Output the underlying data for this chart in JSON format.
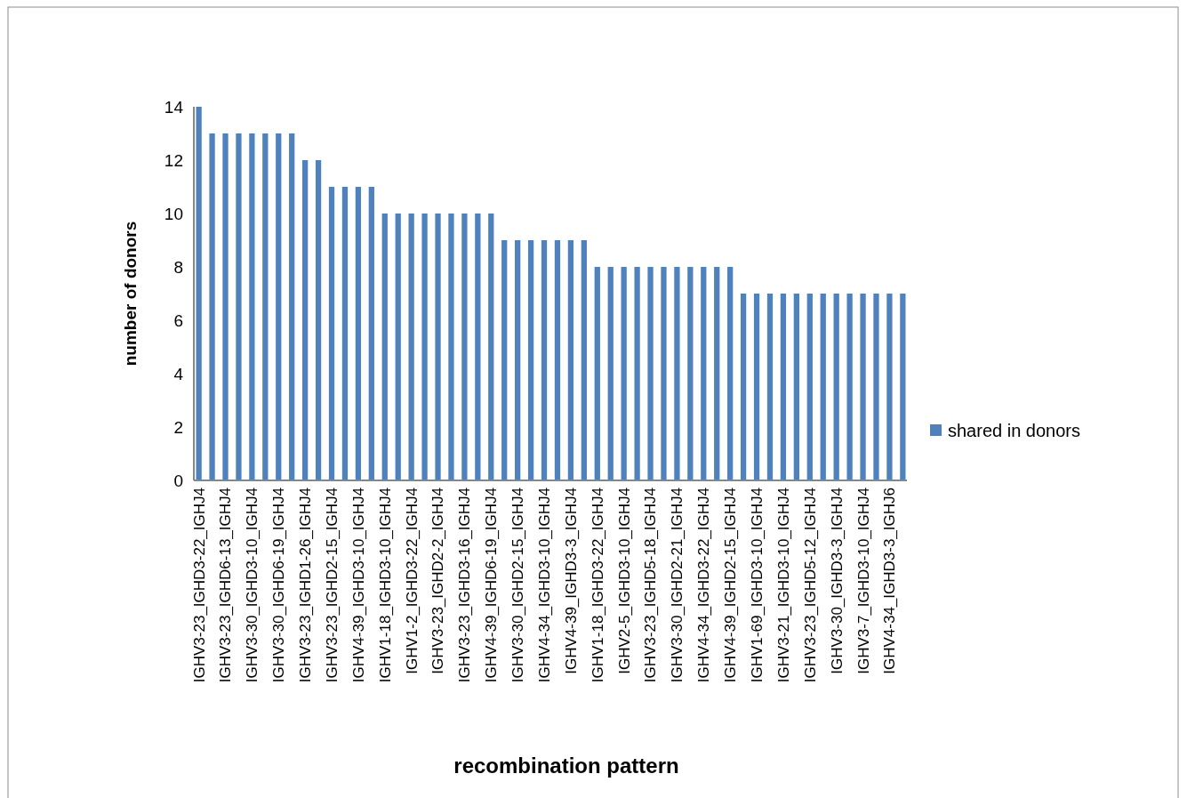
{
  "chart_data": {
    "type": "bar",
    "xlabel": "recombination pattern",
    "ylabel": "number of donors",
    "categories": [
      "IGHV3-23_IGHD3-22_IGHJ4",
      null,
      "IGHV3-23_IGHD6-13_IGHJ4",
      null,
      "IGHV3-30_IGHD3-10_IGHJ4",
      null,
      "IGHV3-30_IGHD6-19_IGHJ4",
      null,
      "IGHV3-23_IGHD1-26_IGHJ4",
      null,
      "IGHV3-23_IGHD2-15_IGHJ4",
      null,
      "IGHV4-39_IGHD3-10_IGHJ4",
      null,
      "IGHV1-18_IGHD3-10_IGHJ4",
      null,
      "IGHV1-2_IGHD3-22_IGHJ4",
      null,
      "IGHV3-23_IGHD2-2_IGHJ4",
      null,
      "IGHV3-23_IGHD3-16_IGHJ4",
      null,
      "IGHV4-39_IGHD6-19_IGHJ4",
      null,
      "IGHV3-30_IGHD2-15_IGHJ4",
      null,
      "IGHV4-34_IGHD3-10_IGHJ4",
      null,
      "IGHV4-39_IGHD3-3_IGHJ4",
      null,
      "IGHV1-18_IGHD3-22_IGHJ4",
      null,
      "IGHV2-5_IGHD3-10_IGHJ4",
      null,
      "IGHV3-23_IGHD5-18_IGHJ4",
      null,
      "IGHV3-30_IGHD2-21_IGHJ4",
      null,
      "IGHV4-34_IGHD3-22_IGHJ4",
      null,
      "IGHV4-39_IGHD2-15_IGHJ4",
      null,
      "IGHV1-69_IGHD3-10_IGHJ4",
      null,
      "IGHV3-21_IGHD3-10_IGHJ4",
      null,
      "IGHV3-23_IGHD5-12_IGHJ4",
      null,
      "IGHV3-30_IGHD3-3_IGHJ4",
      null,
      "IGHV3-7_IGHD3-10_IGHJ4",
      null,
      "IGHV4-34_IGHD3-3_IGHJ6",
      null
    ],
    "series": [
      {
        "name": "shared in donors",
        "color": "#4f81bd",
        "values": [
          14,
          13,
          13,
          13,
          13,
          13,
          13,
          13,
          12,
          12,
          11,
          11,
          11,
          11,
          10,
          10,
          10,
          10,
          10,
          10,
          10,
          10,
          10,
          9,
          9,
          9,
          9,
          9,
          9,
          9,
          8,
          8,
          8,
          8,
          8,
          8,
          8,
          8,
          8,
          8,
          8,
          7,
          7,
          7,
          7,
          7,
          7,
          7,
          7,
          7,
          7,
          7,
          7,
          7
        ]
      }
    ],
    "ylim": [
      0,
      14
    ],
    "yticks": [
      0,
      2,
      4,
      6,
      8,
      10,
      12,
      14
    ],
    "grid": false,
    "legend": "right"
  }
}
